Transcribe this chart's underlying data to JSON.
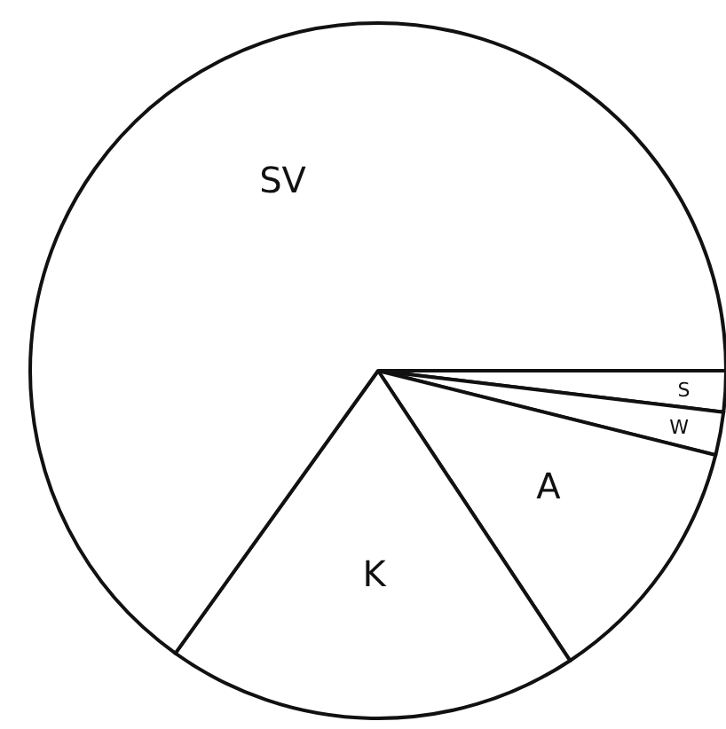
{
  "chart_data": {
    "type": "pie",
    "categories": [
      "S",
      "W",
      "A",
      "K",
      "SV"
    ],
    "values": [
      1.9,
      2.0,
      11.8,
      19.2,
      65.1
    ],
    "colors": [
      "#ffffff",
      "#ffffff",
      "#ffffff",
      "#ffffff",
      "#ffffff"
    ]
  }
}
